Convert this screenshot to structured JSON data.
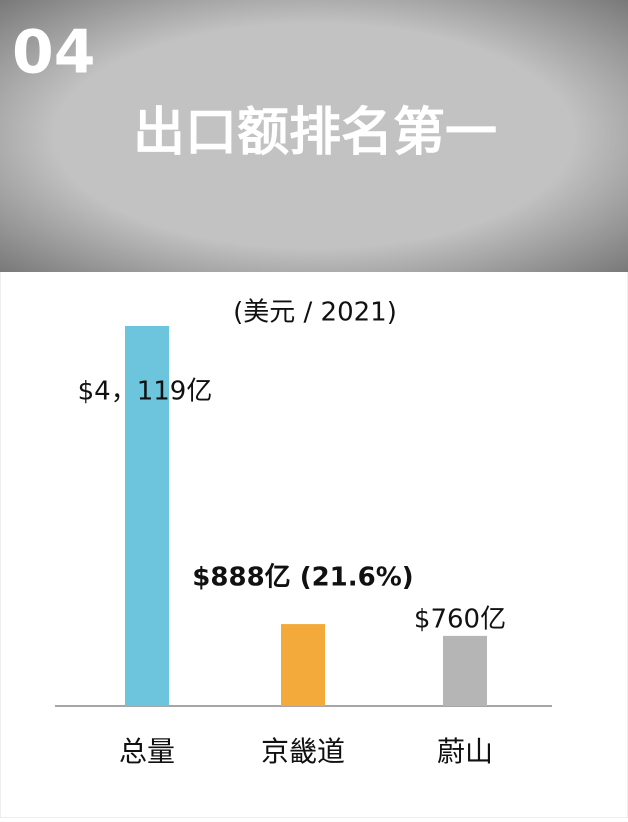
{
  "header": {
    "number": "04",
    "title": "出口额排名第一"
  },
  "chart_data": {
    "type": "bar",
    "subtitle": "(美元 / 2021)",
    "categories": [
      "总量",
      "京畿道",
      "蔚山"
    ],
    "values": [
      4119,
      888,
      760
    ],
    "value_labels": [
      "$4，119亿",
      "$888亿 (21.6%)",
      "$760亿"
    ],
    "colors": [
      "#6cc5dc",
      "#f4aa3a",
      "#b5b5b5"
    ]
  }
}
